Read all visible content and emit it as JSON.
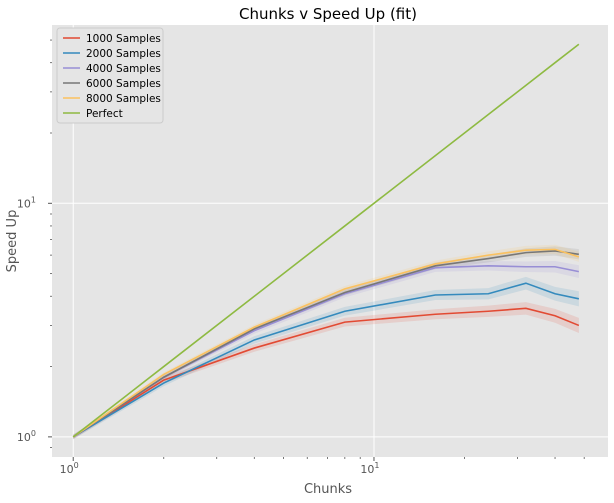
{
  "chart_data": {
    "type": "line",
    "title": "Chunks v Speed Up (fit)",
    "xlabel": "Chunks",
    "ylabel": "Speed Up",
    "xscale": "log",
    "yscale": "log",
    "xlim": [
      0.85,
      60
    ],
    "ylim": [
      0.82,
      58
    ],
    "xticks": [
      {
        "value": 1,
        "base": "10",
        "exp": "0"
      },
      {
        "value": 10,
        "base": "10",
        "exp": "1"
      }
    ],
    "yticks": [
      {
        "value": 1,
        "base": "10",
        "exp": "0"
      },
      {
        "value": 10,
        "base": "10",
        "exp": "1"
      }
    ],
    "grid": true,
    "legend_position": "top-left",
    "x": [
      1,
      2,
      4,
      8,
      16,
      24,
      32,
      40,
      48
    ],
    "series": [
      {
        "name": "1000 Samples",
        "color": "#e24a33",
        "values": [
          1.0,
          1.75,
          2.4,
          3.1,
          3.35,
          3.45,
          3.55,
          3.3,
          3.0
        ],
        "band": 0.06
      },
      {
        "name": "2000 Samples",
        "color": "#348abd",
        "values": [
          1.0,
          1.7,
          2.6,
          3.45,
          4.05,
          4.1,
          4.55,
          4.1,
          3.9
        ],
        "band": 0.06
      },
      {
        "name": "4000 Samples",
        "color": "#988ed5",
        "values": [
          1.0,
          1.8,
          2.85,
          4.1,
          5.3,
          5.4,
          5.35,
          5.35,
          5.1
        ],
        "band": 0.05
      },
      {
        "name": "6000 Samples",
        "color": "#777777",
        "values": [
          1.0,
          1.8,
          2.9,
          4.15,
          5.4,
          5.8,
          6.15,
          6.25,
          6.05
        ],
        "band": 0.04
      },
      {
        "name": "8000 Samples",
        "color": "#fbc15e",
        "values": [
          1.0,
          1.85,
          2.95,
          4.3,
          5.5,
          6.0,
          6.3,
          6.35,
          5.9
        ],
        "band": 0.04
      },
      {
        "name": "Perfect",
        "color": "#8eba42",
        "values": [
          1,
          2,
          4,
          8,
          16,
          24,
          32,
          40,
          48
        ],
        "band": 0
      }
    ]
  }
}
